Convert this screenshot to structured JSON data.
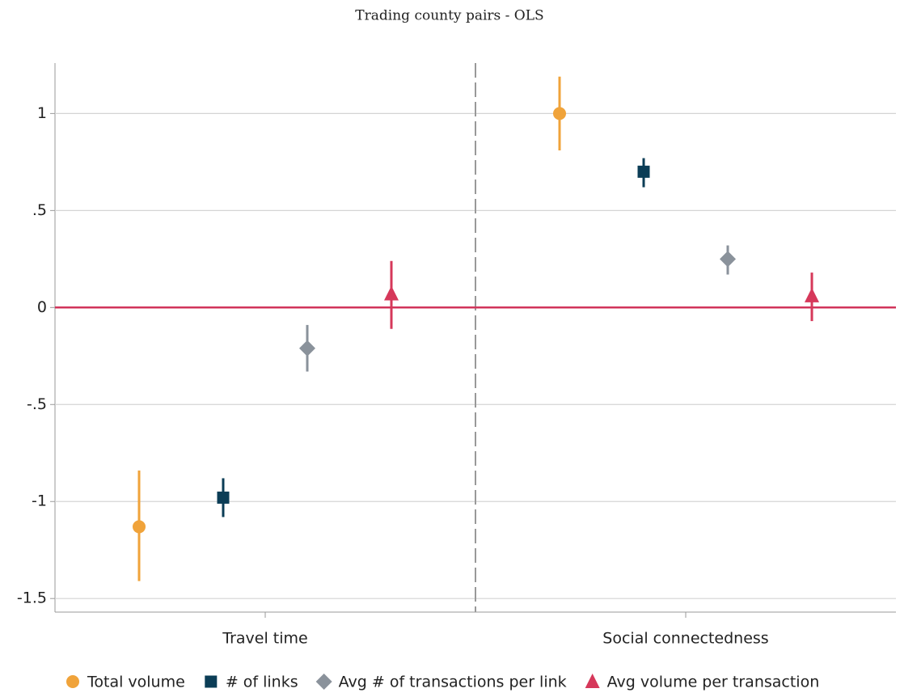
{
  "chart_data": {
    "type": "coefplot",
    "title": "Trading county pairs - OLS",
    "categories": [
      "Travel time",
      "Social connectedness"
    ],
    "series": [
      {
        "name": "Total volume",
        "color": "#f0a33a",
        "marker": "circle",
        "values": [
          -1.13,
          1.0
        ],
        "ci_low": [
          -1.41,
          0.81
        ],
        "ci_high": [
          -0.84,
          1.19
        ]
      },
      {
        "name": "# of links",
        "color": "#0b3d56",
        "marker": "square",
        "values": [
          -0.98,
          0.7
        ],
        "ci_low": [
          -1.08,
          0.62
        ],
        "ci_high": [
          -0.88,
          0.77
        ]
      },
      {
        "name": "Avg # of transactions per link",
        "color": "#8a929b",
        "marker": "diamond",
        "values": [
          -0.21,
          0.25
        ],
        "ci_low": [
          -0.33,
          0.17
        ],
        "ci_high": [
          -0.09,
          0.32
        ]
      },
      {
        "name": "Avg volume per transaction",
        "color": "#d6385a",
        "marker": "triangle",
        "values": [
          0.07,
          0.06
        ],
        "ci_low": [
          -0.11,
          -0.07
        ],
        "ci_high": [
          0.24,
          0.18
        ]
      }
    ],
    "reference_line": 0,
    "reference_color": "#d1345b",
    "ylim": [
      -1.57,
      1.26
    ],
    "yticks": [
      {
        "value": -1.5,
        "label": "-1.5"
      },
      -1,
      {
        "value": -0.5,
        "label": "-.5"
      },
      0,
      {
        "value": 0.5,
        "label": ".5"
      },
      1
    ],
    "grid": true,
    "legend": "bottom"
  }
}
